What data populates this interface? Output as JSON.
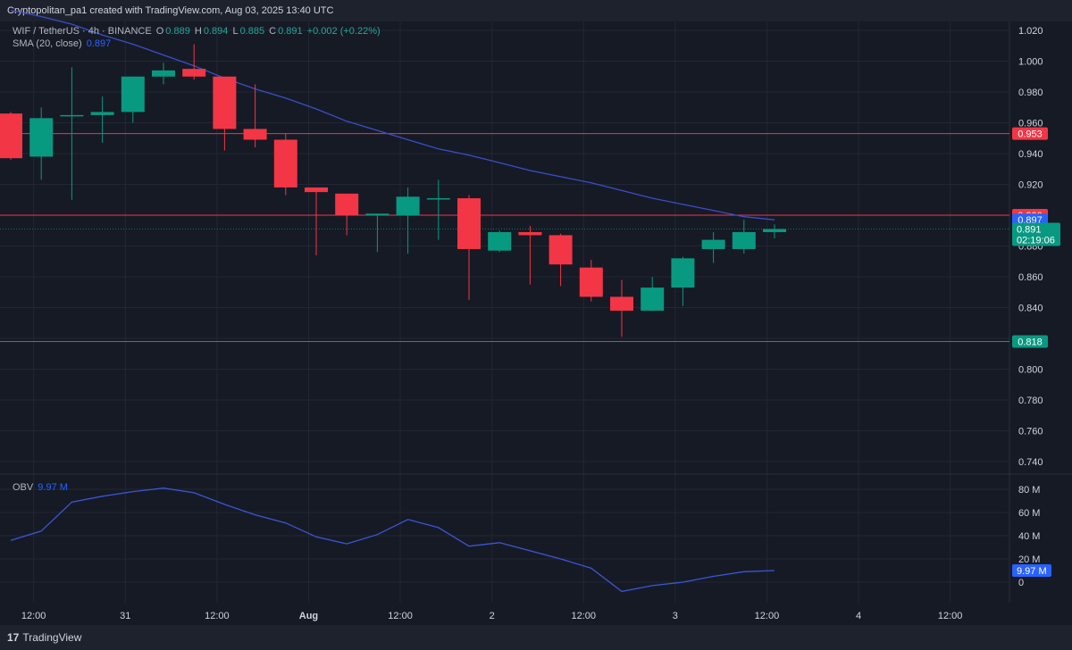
{
  "header": {
    "credit": "Cryptopolitan_pa1 created with TradingView.com, Aug 03, 2025 13:40 UTC"
  },
  "legend": {
    "symbol": "WIF / TetherUS · 4h · BINANCE",
    "open_label": "O",
    "open": "0.889",
    "high_label": "H",
    "high": "0.894",
    "low_label": "L",
    "low": "0.885",
    "close_label": "C",
    "close": "0.891",
    "change": "+0.002 (+0.22%)",
    "sma_label": "SMA (20, close)",
    "sma_value": "0.897",
    "obv_label": "OBV",
    "obv_value": "9.97 M"
  },
  "footer": {
    "brand": "TradingView",
    "brand_mark": "17"
  },
  "colors": {
    "up": "#089981",
    "down": "#f23645",
    "sma": "#3a4ec9",
    "obv": "#3b56d6",
    "background": "#161a25",
    "grid": "#232734",
    "label_blue": "#2962ff"
  },
  "chart_data": [
    {
      "type": "candlestick",
      "title": "WIF / TetherUS · 4h · BINANCE",
      "y_range": [
        0.73,
        1.025
      ],
      "y_ticks": [
        "1.020",
        "1.000",
        "0.980",
        "0.960",
        "0.940",
        "0.920",
        "0.880",
        "0.860",
        "0.840",
        "0.820",
        "0.800",
        "0.780",
        "0.760",
        "0.740"
      ],
      "x_ticks": [
        "12:00",
        "31",
        "12:00",
        "Aug",
        "12:00",
        "2",
        "12:00",
        "3",
        "12:00",
        "4",
        "12:00"
      ],
      "candles": [
        {
          "o": 0.966,
          "h": 0.967,
          "l": 0.936,
          "c": 0.937
        },
        {
          "o": 0.938,
          "h": 0.97,
          "l": 0.923,
          "c": 0.963
        },
        {
          "o": 0.965,
          "h": 0.996,
          "l": 0.91,
          "c": 0.965
        },
        {
          "o": 0.965,
          "h": 0.977,
          "l": 0.947,
          "c": 0.967
        },
        {
          "o": 0.967,
          "h": 0.99,
          "l": 0.96,
          "c": 0.99
        },
        {
          "o": 0.99,
          "h": 0.999,
          "l": 0.985,
          "c": 0.994
        },
        {
          "o": 0.995,
          "h": 1.011,
          "l": 0.988,
          "c": 0.99
        },
        {
          "o": 0.99,
          "h": 0.99,
          "l": 0.942,
          "c": 0.956
        },
        {
          "o": 0.956,
          "h": 0.985,
          "l": 0.944,
          "c": 0.949
        },
        {
          "o": 0.949,
          "h": 0.953,
          "l": 0.913,
          "c": 0.918
        },
        {
          "o": 0.918,
          "h": 0.918,
          "l": 0.874,
          "c": 0.915
        },
        {
          "o": 0.914,
          "h": 0.914,
          "l": 0.887,
          "c": 0.9
        },
        {
          "o": 0.9,
          "h": 0.901,
          "l": 0.876,
          "c": 0.901
        },
        {
          "o": 0.9,
          "h": 0.918,
          "l": 0.875,
          "c": 0.912
        },
        {
          "o": 0.911,
          "h": 0.923,
          "l": 0.884,
          "c": 0.911
        },
        {
          "o": 0.911,
          "h": 0.913,
          "l": 0.845,
          "c": 0.878
        },
        {
          "o": 0.877,
          "h": 0.89,
          "l": 0.876,
          "c": 0.889
        },
        {
          "o": 0.889,
          "h": 0.893,
          "l": 0.855,
          "c": 0.887
        },
        {
          "o": 0.887,
          "h": 0.888,
          "l": 0.854,
          "c": 0.868
        },
        {
          "o": 0.866,
          "h": 0.871,
          "l": 0.844,
          "c": 0.847
        },
        {
          "o": 0.847,
          "h": 0.858,
          "l": 0.821,
          "c": 0.838
        },
        {
          "o": 0.838,
          "h": 0.86,
          "l": 0.838,
          "c": 0.853
        },
        {
          "o": 0.853,
          "h": 0.873,
          "l": 0.841,
          "c": 0.872
        },
        {
          "o": 0.878,
          "h": 0.889,
          "l": 0.869,
          "c": 0.884
        },
        {
          "o": 0.878,
          "h": 0.897,
          "l": 0.875,
          "c": 0.889
        },
        {
          "o": 0.889,
          "h": 0.894,
          "l": 0.885,
          "c": 0.891
        }
      ],
      "sma": [
        1.033,
        1.029,
        1.024,
        1.017,
        1.011,
        1.004,
        0.997,
        0.989,
        0.982,
        0.976,
        0.969,
        0.961,
        0.955,
        0.949,
        0.943,
        0.939,
        0.934,
        0.929,
        0.925,
        0.921,
        0.916,
        0.911,
        0.907,
        0.903,
        0.899,
        0.897
      ],
      "horizontal_lines": [
        {
          "value": 0.953,
          "label": "0.953",
          "color": "#f23645"
        },
        {
          "value": 0.9,
          "label": "0.900",
          "color": "#f23645"
        },
        {
          "value": 0.818,
          "label": "0.818",
          "color": "#089981"
        }
      ],
      "price_labels": [
        {
          "value": 0.897,
          "label": "0.897",
          "color": "#2962ff"
        },
        {
          "value": 0.891,
          "label": "0.891",
          "sub": "02:19:06",
          "color": "#089981"
        }
      ]
    },
    {
      "type": "line",
      "title": "OBV",
      "y_unit": "M",
      "y_range": [
        -8,
        88
      ],
      "y_ticks": [
        "80 M",
        "60 M",
        "40 M",
        "20 M",
        "0"
      ],
      "series": [
        {
          "name": "OBV",
          "values": [
            36,
            44,
            69,
            74,
            78,
            81,
            77,
            67,
            58,
            51,
            39,
            33,
            41,
            54,
            47,
            31,
            34,
            27,
            20,
            12,
            -8,
            -3,
            0,
            5,
            9,
            9.97
          ]
        }
      ],
      "last_label": "9.97 M"
    }
  ]
}
